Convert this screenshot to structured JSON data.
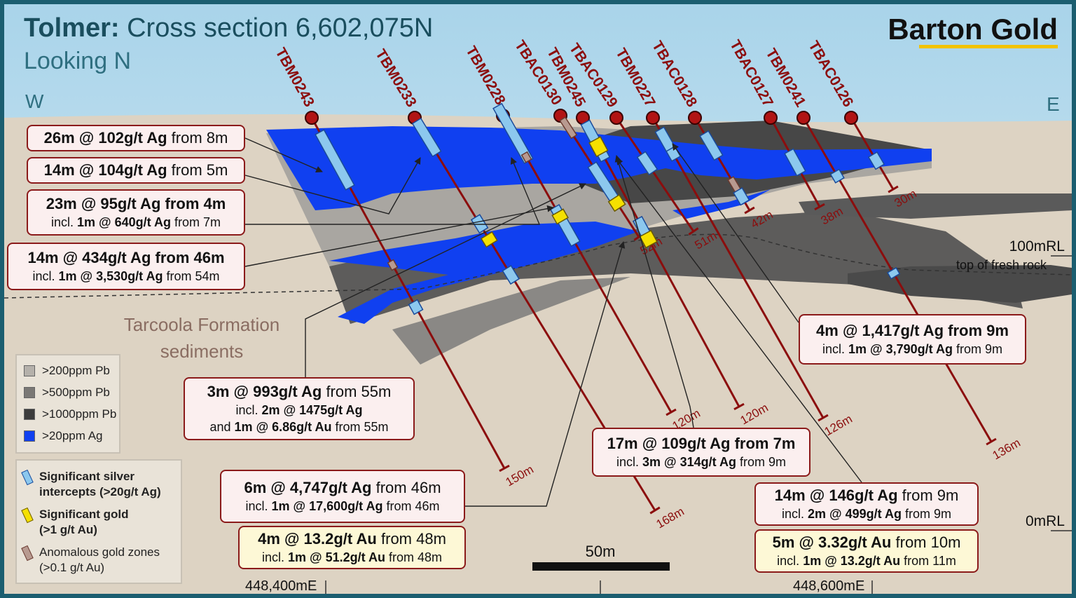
{
  "header": {
    "title_bold": "Tolmer:",
    "title": "Cross section 6,602,075N",
    "subtitle": "Looking N",
    "logo": "Barton Gold"
  },
  "compass": {
    "west": "W",
    "east": "E"
  },
  "drill_holes": [
    {
      "name": "TBM0243",
      "depth": "150m"
    },
    {
      "name": "TBM0233",
      "depth": "168m"
    },
    {
      "name": "TBM0228",
      "depth": "120m"
    },
    {
      "name": "TBAC0130",
      "depth": "52m"
    },
    {
      "name": "TBM0245",
      "depth": "120m"
    },
    {
      "name": "TBAC0129",
      "depth": "51m"
    },
    {
      "name": "TBM0227",
      "depth": "126m"
    },
    {
      "name": "TBAC0128",
      "depth": "42m"
    },
    {
      "name": "TBAC0127",
      "depth": "38m"
    },
    {
      "name": "TBM0241",
      "depth": "136m"
    },
    {
      "name": "TBAC0126",
      "depth": "30m"
    }
  ],
  "intercepts": [
    {
      "lines": [
        {
          "bold": "26m @ 102g/t Ag",
          "text": "from 8m"
        }
      ]
    },
    {
      "lines": [
        {
          "bold": "14m @ 104g/t Ag",
          "text": "from 5m"
        }
      ]
    },
    {
      "lines": [
        {
          "bold": "23m @ 95g/t Ag from 4m"
        },
        {
          "prefix": "incl.",
          "bold": "1m @ 640g/t Ag",
          "text": "from 7m"
        }
      ]
    },
    {
      "lines": [
        {
          "bold": "14m @ 434g/t Ag from 46m"
        },
        {
          "prefix": "incl.",
          "bold": "1m @ 3,530g/t Ag",
          "text": "from 54m"
        }
      ]
    },
    {
      "lines": [
        {
          "bold": "3m @ 993g/t Ag",
          "text": "from 55m"
        },
        {
          "prefix": "incl.",
          "bold": "2m @ 1475g/t Ag"
        },
        {
          "prefix": "and",
          "bold": "1m @ 6.86g/t Au",
          "text": "from 55m"
        }
      ]
    },
    {
      "lines": [
        {
          "bold": "17m @ 109g/t Ag from 7m"
        },
        {
          "prefix": "incl.",
          "bold": "3m @ 314g/t Ag",
          "text": "from 9m"
        }
      ]
    },
    {
      "lines": [
        {
          "bold": "6m @ 4,747g/t Ag",
          "text": "from 46m"
        },
        {
          "prefix": "incl.",
          "bold": "1m @ 17,600g/t Ag",
          "text": "from 46m"
        }
      ]
    },
    {
      "lines": [
        {
          "bold": "4m @ 13.2g/t Au",
          "text": "from 48m"
        },
        {
          "prefix": "incl.",
          "bold": "1m @ 51.2g/t Au",
          "text": "from 48m"
        }
      ]
    },
    {
      "lines": [
        {
          "bold": "4m @ 1,417g/t Ag from 9m"
        },
        {
          "prefix": "incl.",
          "bold": "1m @ 3,790g/t Ag",
          "text": "from 9m"
        }
      ]
    },
    {
      "lines": [
        {
          "bold": "14m @ 146g/t Ag",
          "text": "from 9m"
        },
        {
          "prefix": "incl.",
          "bold": "2m @ 499g/t Ag",
          "text": "from 9m"
        }
      ]
    },
    {
      "lines": [
        {
          "bold": "5m @ 3.32g/t Au",
          "text": "from 10m"
        },
        {
          "prefix": "incl.",
          "bold": "1m @ 13.2g/t Au",
          "text": "from 11m"
        }
      ]
    }
  ],
  "unit_label": [
    "Tarcoola Formation",
    "sediments"
  ],
  "levels": [
    "100mRL",
    "0mRL"
  ],
  "fresh_rock": "top of fresh rock",
  "eastings": [
    "448,400mE",
    "448,600mE"
  ],
  "scale_bar": "50m",
  "legend_geochem": [
    ">200ppm Pb",
    ">500ppm Pb",
    ">1000ppm Pb",
    ">20ppm Ag"
  ],
  "legend_intercepts": [
    [
      "Significant silver",
      "intercepts (>20g/t Ag)"
    ],
    [
      "Significant gold",
      "(>1 g/t Au)"
    ],
    [
      "Anomalous gold zones",
      "(>0.1 g/t Au)"
    ]
  ]
}
